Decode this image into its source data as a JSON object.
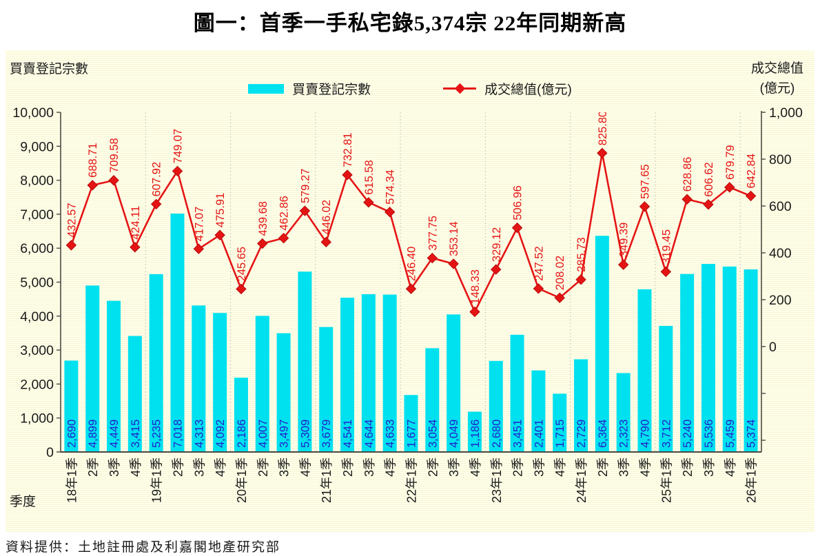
{
  "title": "圖一：首季一手私宅錄5,374宗 22年同期新高",
  "footer": "資料提供：土地註冊處及利嘉閣地產研究部",
  "left_axis_title": "買賣登記宗數",
  "right_axis_title_line1": "成交總值",
  "right_axis_title_line2": "(億元)",
  "x_axis_title": "季度",
  "legend": {
    "bars_label": "買賣登記宗數",
    "line_label": "成交總值(億元)"
  },
  "colors": {
    "bar": "#00E1EF",
    "line": "#E51414",
    "marker_stroke": "#B40A0A",
    "bar_label": "#2222CC",
    "line_label": "#E51414",
    "panel_bg": "#FFFFE6",
    "grid": "#C9C9B2",
    "axis": "#4A4A44",
    "tick_label": "#1a1a1a"
  },
  "chart_data": {
    "type": "bar",
    "subtype": "bar+line combo, dual axis",
    "title": "圖一：首季一手私宅錄5,374宗 22年同期新高",
    "xlabel": "季度",
    "ylabel_left": "買賣登記宗數",
    "ylabel_right": "成交總值(億元)",
    "legend_position": "top-center",
    "grid": "vertical dotted separators at year boundaries",
    "categories": [
      "18年1季",
      "2季",
      "3季",
      "4季",
      "19年1季",
      "2季",
      "3季",
      "4季",
      "20年1季",
      "2季",
      "3季",
      "4季",
      "21年1季",
      "2季",
      "3季",
      "4季",
      "22年1季",
      "2季",
      "3季",
      "4季",
      "23年1季",
      "2季",
      "3季",
      "4季",
      "24年1季",
      "2季",
      "3季",
      "4季",
      "25年1季",
      "2季",
      "3季",
      "4季",
      "26年1季"
    ],
    "series": [
      {
        "name": "買賣登記宗數",
        "type": "bar",
        "axis": "left",
        "values": [
          2690,
          4899,
          4449,
          3415,
          5235,
          7018,
          4313,
          4092,
          2186,
          4007,
          3497,
          5309,
          3679,
          4541,
          4644,
          4633,
          1677,
          3054,
          4049,
          1186,
          2680,
          3451,
          2401,
          1715,
          2729,
          6364,
          2323,
          4790,
          3712,
          5240,
          5536,
          5459,
          5374
        ]
      },
      {
        "name": "成交總值(億元)",
        "type": "line",
        "axis": "right",
        "values": [
          432.57,
          688.71,
          709.58,
          424.11,
          607.92,
          749.07,
          417.07,
          475.91,
          245.65,
          439.68,
          462.86,
          579.27,
          446.02,
          732.81,
          615.58,
          574.34,
          246.4,
          377.75,
          353.14,
          148.33,
          329.12,
          506.96,
          247.52,
          208.02,
          285.73,
          825.8,
          349.39,
          597.65,
          319.45,
          628.86,
          606.62,
          679.79,
          642.84
        ]
      }
    ],
    "left_axis": {
      "min": 0,
      "max": 10000,
      "tick_step": 1000
    },
    "right_axis": {
      "max": 1000,
      "labeled_ticks": [
        1000,
        800,
        600,
        400,
        200,
        0
      ],
      "unlabeled_ticks": [
        -200,
        -400
      ],
      "display_min": -450
    }
  }
}
